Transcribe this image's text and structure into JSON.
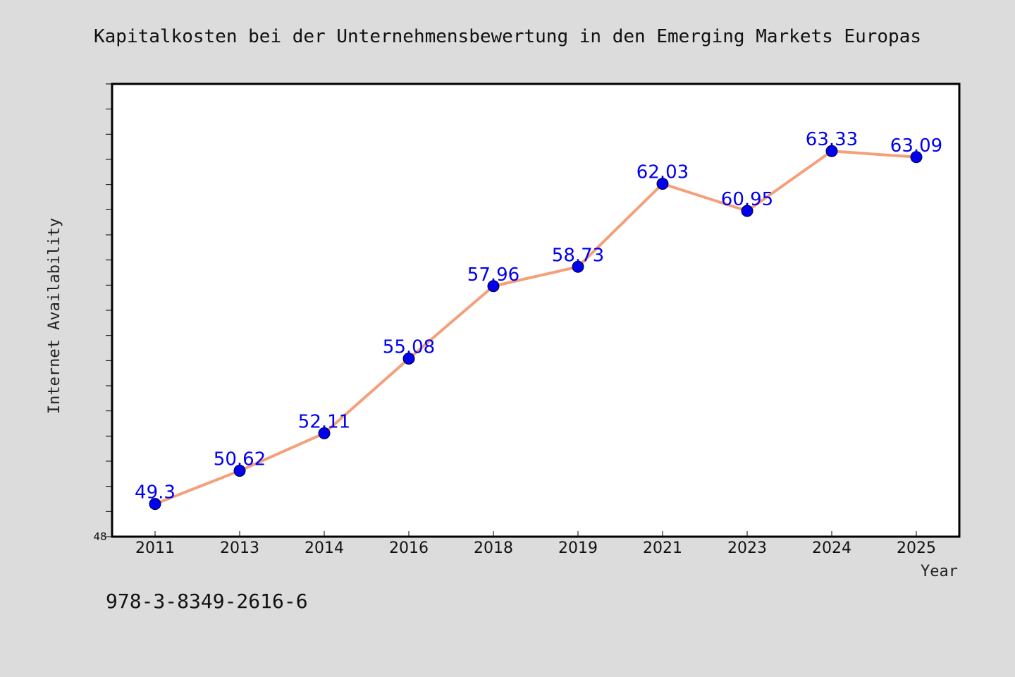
{
  "chart_data": {
    "type": "line",
    "title": "Kapitalkosten bei der Unternehmensbewertung in den Emerging Markets Europas",
    "xlabel": "Year",
    "ylabel": "Internet Availability",
    "categories": [
      "2011",
      "2013",
      "2014",
      "2016",
      "2018",
      "2019",
      "2021",
      "2023",
      "2024",
      "2025"
    ],
    "series": [
      {
        "values": [
          49.3,
          50.62,
          52.11,
          55.08,
          57.96,
          58.73,
          62.03,
          60.95,
          63.33,
          63.09
        ]
      }
    ],
    "data_labels": [
      "49.3",
      "50.62",
      "52.11",
      "55.08",
      "57.96",
      "58.73",
      "62.03",
      "60.95",
      "63.33",
      "63.09"
    ],
    "ylim": [
      48,
      66
    ],
    "y_tick_labels": [
      "48"
    ],
    "grid": false,
    "line_color": "#f4a07a",
    "marker_color": "#0000ee",
    "label_color": "#0000ee"
  },
  "footer": {
    "isbn": "978-3-8349-2616-6"
  }
}
